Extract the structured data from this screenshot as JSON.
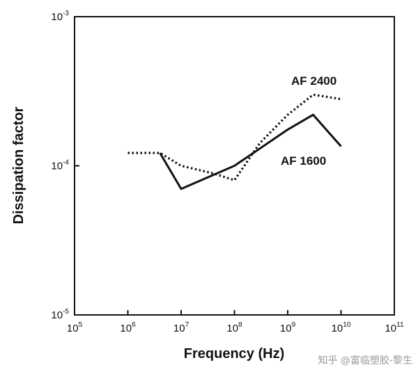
{
  "chart_data": {
    "type": "line",
    "title": "",
    "xlabel": "Frequency (Hz)",
    "ylabel": "Dissipation factor",
    "xscale": "log",
    "yscale": "log",
    "xlim_exp": [
      5,
      11
    ],
    "ylim_exp": [
      -5,
      -3
    ],
    "x_ticks": [
      {
        "base": "10",
        "exp": "5"
      },
      {
        "base": "10",
        "exp": "6"
      },
      {
        "base": "10",
        "exp": "7"
      },
      {
        "base": "10",
        "exp": "8"
      },
      {
        "base": "10",
        "exp": "9"
      },
      {
        "base": "10",
        "exp": "10"
      },
      {
        "base": "10",
        "exp": "11"
      }
    ],
    "y_ticks": [
      {
        "base": "10",
        "exp": "-5"
      },
      {
        "base": "10",
        "exp": "-4"
      },
      {
        "base": "10",
        "exp": "-3"
      }
    ],
    "series": [
      {
        "name": "AF 2400",
        "style": "dotted",
        "points": [
          {
            "x": 1000000.0,
            "y": 0.000122
          },
          {
            "x": 4000000.0,
            "y": 0.000122
          },
          {
            "x": 10000000.0,
            "y": 0.0001
          },
          {
            "x": 40000000.0,
            "y": 8.9e-05
          },
          {
            "x": 100000000.0,
            "y": 8e-05
          },
          {
            "x": 300000000.0,
            "y": 0.000142
          },
          {
            "x": 1000000000.0,
            "y": 0.00022
          },
          {
            "x": 3000000000.0,
            "y": 0.0003
          },
          {
            "x": 10000000000.0,
            "y": 0.00028
          }
        ]
      },
      {
        "name": "AF 1600",
        "style": "solid",
        "points": [
          {
            "x": 4000000.0,
            "y": 0.000122
          },
          {
            "x": 10000000.0,
            "y": 7e-05
          },
          {
            "x": 100000000.0,
            "y": 0.0001
          },
          {
            "x": 1000000000.0,
            "y": 0.000175
          },
          {
            "x": 3000000000.0,
            "y": 0.00022
          },
          {
            "x": 10000000000.0,
            "y": 0.000135
          }
        ]
      }
    ],
    "annotations": [
      "AF 2400",
      "AF 1600"
    ]
  },
  "watermark": "知乎 @富临塑胶-黎生"
}
